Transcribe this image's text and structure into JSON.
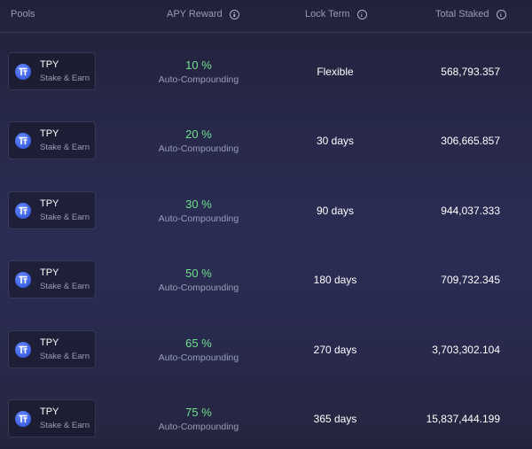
{
  "header": {
    "pools": "Pools",
    "apy_reward": "APY Reward",
    "lock_term": "Lock Term",
    "total_staked": "Total Staked"
  },
  "rows": [
    {
      "token": "TPY",
      "subtitle": "Stake & Earn",
      "apy": "10 %",
      "apy_note": "Auto-Compounding",
      "lock_term": "Flexible",
      "total_staked": "568,793.357"
    },
    {
      "token": "TPY",
      "subtitle": "Stake & Earn",
      "apy": "20 %",
      "apy_note": "Auto-Compounding",
      "lock_term": "30 days",
      "total_staked": "306,665.857"
    },
    {
      "token": "TPY",
      "subtitle": "Stake & Earn",
      "apy": "30 %",
      "apy_note": "Auto-Compounding",
      "lock_term": "90 days",
      "total_staked": "944,037.333"
    },
    {
      "token": "TPY",
      "subtitle": "Stake & Earn",
      "apy": "50 %",
      "apy_note": "Auto-Compounding",
      "lock_term": "180 days",
      "total_staked": "709,732.345"
    },
    {
      "token": "TPY",
      "subtitle": "Stake & Earn",
      "apy": "65 %",
      "apy_note": "Auto-Compounding",
      "lock_term": "270 days",
      "total_staked": "3,703,302.104"
    },
    {
      "token": "TPY",
      "subtitle": "Stake & Earn",
      "apy": "75 %",
      "apy_note": "Auto-Compounding",
      "lock_term": "365 days",
      "total_staked": "15,837,444.199"
    }
  ],
  "icons": {
    "info": "info-icon",
    "token": "tpy-token-icon"
  },
  "colors": {
    "apy_green": "#6ee08c",
    "muted_text": "#9a9db8",
    "token_blue": "#3b5fe0",
    "background": "#2b2d55"
  }
}
